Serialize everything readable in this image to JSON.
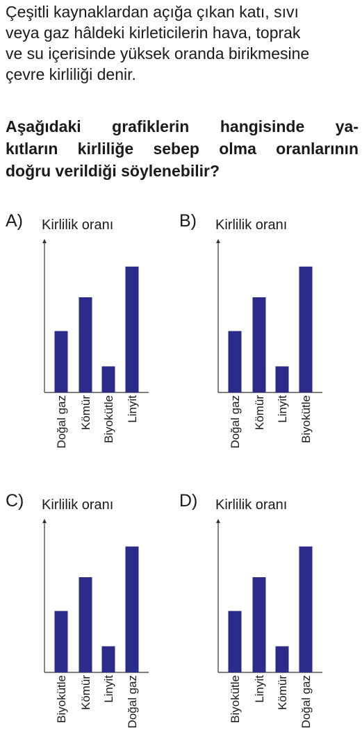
{
  "intro": {
    "lines": [
      "Çeşitli kaynaklardan açığa çıkan katı, sıvı",
      "veya gaz hâldeki kirleticilerin hava, toprak",
      "ve su içerisinde yüksek oranda birikmesine",
      "çevre kirliliği denir."
    ]
  },
  "question": {
    "lines": [
      "Aşağıdaki grafiklerin hangisinde ya-",
      "kıtların kirliliğe sebep olma oranlarının",
      "doğru verildiği söylenebilir?"
    ]
  },
  "colors": {
    "bar": "#2b2c8a",
    "axis": "#333333",
    "text": "#1a1a1a"
  },
  "chart_data": [
    {
      "type": "bar",
      "option": "A)",
      "ylabel": "Kirlilik oranı",
      "categories": [
        "Doğal gaz",
        "Kömür",
        "Biyokütle",
        "Linyit"
      ],
      "values": [
        4,
        6.2,
        1.7,
        8.2
      ],
      "ylim": [
        0,
        10
      ],
      "grid": false
    },
    {
      "type": "bar",
      "option": "B)",
      "ylabel": "Kirlilik oranı",
      "categories": [
        "Doğal gaz",
        "Kömür",
        "Linyit",
        "Biyokütle"
      ],
      "values": [
        4,
        6.2,
        1.7,
        8.2
      ],
      "ylim": [
        0,
        10
      ],
      "grid": false
    },
    {
      "type": "bar",
      "option": "C)",
      "ylabel": "Kirlilik oranı",
      "categories": [
        "Biyokütle",
        "Kömür",
        "Linyit",
        "Doğal gaz"
      ],
      "values": [
        4,
        6.2,
        1.7,
        8.2
      ],
      "ylim": [
        0,
        10
      ],
      "grid": false
    },
    {
      "type": "bar",
      "option": "D)",
      "ylabel": "Kirlilik oranı",
      "categories": [
        "Biyokütle",
        "Linyit",
        "Kömür",
        "Doğal gaz"
      ],
      "values": [
        4,
        6.2,
        1.7,
        8.2
      ],
      "ylim": [
        0,
        10
      ],
      "grid": false
    }
  ]
}
